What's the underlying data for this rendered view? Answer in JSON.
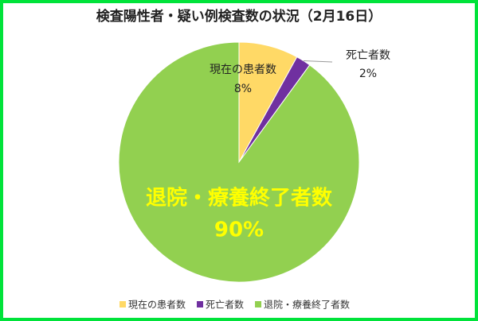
{
  "chart_data": {
    "type": "pie",
    "title": "検査陽性者・疑い例検査数の状況（2月16日）",
    "categories": [
      "現在の患者数",
      "死亡者数",
      "退院・療養終了者数"
    ],
    "values": [
      8,
      2,
      90
    ],
    "value_labels": [
      "8%",
      "2%",
      "90%"
    ],
    "colors": [
      "#ffd966",
      "#7030a0",
      "#92d050"
    ],
    "legend": "bottom"
  }
}
